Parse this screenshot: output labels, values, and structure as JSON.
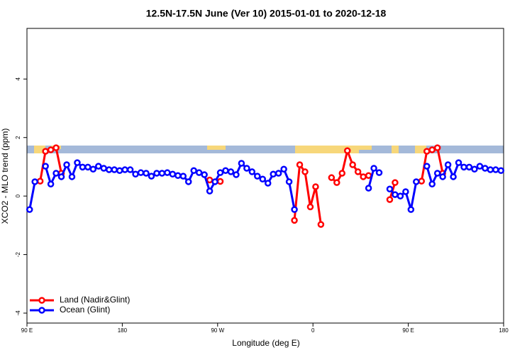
{
  "chart_data": {
    "type": "line",
    "title": "12.5N-17.5N June (Ver 10)   2015-01-01 to 2020-12-18",
    "x_label": "Longitude (deg E)",
    "y_label": "XCO2 - MLO trend (ppm)",
    "x": [
      92.5,
      97.5,
      102.5,
      107.5,
      112.5,
      117.5,
      122.5,
      127.5,
      132.5,
      137.5,
      142.5,
      147.5,
      152.5,
      157.5,
      162.5,
      167.5,
      172.5,
      177.5,
      182.5,
      187.5,
      192.5,
      197.5,
      202.5,
      207.5,
      212.5,
      217.5,
      222.5,
      227.5,
      232.5,
      237.5,
      242.5,
      247.5,
      252.5,
      257.5,
      262.5,
      267.5,
      272.5,
      277.5,
      282.5,
      287.5,
      292.5,
      297.5,
      302.5,
      307.5,
      312.5,
      317.5,
      322.5,
      327.5,
      332.5,
      337.5,
      342.5,
      347.5,
      352.5,
      357.5,
      362.5,
      367.5,
      372.5,
      377.5,
      382.5,
      387.5,
      392.5,
      397.5,
      402.5,
      407.5,
      412.5,
      417.5,
      422.5,
      427.5,
      432.5,
      437.5,
      442.5,
      447.5,
      452.5,
      457.5,
      462.5,
      467.5,
      472.5,
      477.5,
      482.5,
      487.5,
      492.5,
      497.5,
      502.5,
      507.5,
      512.5,
      517.5,
      522.5,
      527.5,
      532.5,
      537.5
    ],
    "series": [
      {
        "name": "Land (Nadir&Glint)",
        "color": "#ff0000",
        "values": [
          null,
          null,
          0.51,
          1.53,
          1.58,
          1.65,
          0.78,
          null,
          null,
          null,
          null,
          null,
          null,
          null,
          null,
          null,
          null,
          null,
          null,
          null,
          null,
          null,
          null,
          null,
          null,
          null,
          null,
          null,
          null,
          null,
          null,
          null,
          null,
          null,
          0.55,
          null,
          0.5,
          null,
          null,
          null,
          null,
          null,
          null,
          null,
          null,
          null,
          null,
          null,
          null,
          null,
          -0.83,
          1.07,
          0.83,
          -0.37,
          0.32,
          -0.97,
          null,
          0.63,
          0.46,
          0.78,
          1.55,
          1.07,
          0.83,
          0.66,
          0.7,
          null,
          null,
          null,
          -0.12,
          0.46,
          null,
          null,
          null,
          null,
          0.51,
          1.53,
          1.58,
          1.65,
          0.78,
          null,
          null,
          null,
          null,
          null,
          null,
          null,
          null,
          null,
          null,
          null
        ]
      },
      {
        "name": "Ocean (Glint)",
        "color": "#0000ff",
        "values": [
          -0.46,
          0.49,
          null,
          1.02,
          0.41,
          0.78,
          0.66,
          1.07,
          0.66,
          1.14,
          0.99,
          0.99,
          0.92,
          1.02,
          0.95,
          0.9,
          0.9,
          0.87,
          0.9,
          0.9,
          0.75,
          0.8,
          0.78,
          0.68,
          0.78,
          0.78,
          0.8,
          0.75,
          0.7,
          0.68,
          0.49,
          0.87,
          0.8,
          0.73,
          0.17,
          0.49,
          0.8,
          0.87,
          0.83,
          0.73,
          1.12,
          0.95,
          0.83,
          0.68,
          0.58,
          0.44,
          0.75,
          0.78,
          0.92,
          0.49,
          -0.46,
          null,
          null,
          null,
          null,
          null,
          null,
          null,
          null,
          null,
          null,
          null,
          null,
          null,
          0.27,
          0.95,
          0.8,
          null,
          0.24,
          0.05,
          0.0,
          0.15,
          -0.46,
          0.49,
          null,
          1.02,
          0.41,
          0.78,
          0.66,
          1.07,
          0.66,
          1.14,
          0.99,
          0.99,
          0.92,
          1.02,
          0.95,
          0.9,
          0.9,
          0.87
        ]
      }
    ],
    "xlim": [
      90,
      540
    ],
    "ylim": [
      -4.34,
      5.73
    ],
    "xticks": [
      {
        "value": 90,
        "label": "90 E"
      },
      180,
      {
        "value": 270,
        "label": "90 W"
      },
      {
        "value": 360,
        "label": "0"
      },
      {
        "value": 450,
        "label": "90 E"
      },
      {
        "value": 540,
        "label": "180"
      }
    ],
    "yticks": [
      -4,
      -2,
      0,
      2,
      4
    ],
    "legend": "bottom-left"
  }
}
